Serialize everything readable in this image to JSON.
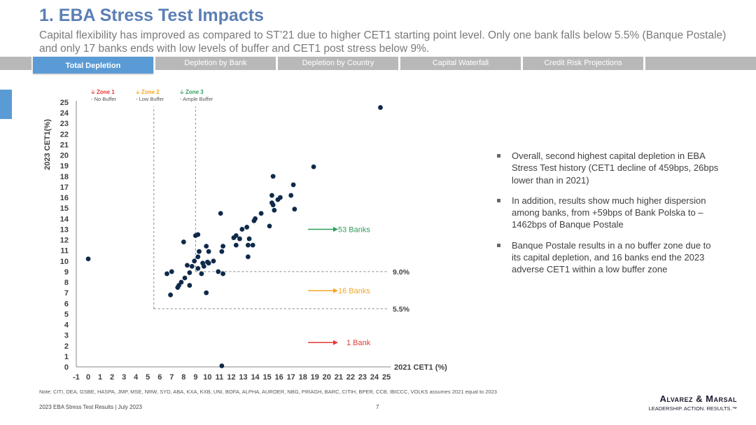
{
  "header": {
    "title": "1. EBA Stress Test Impacts",
    "subtitle": "Capital flexibility has improved as compared to ST’21 due to higher CET1 starting point level. Only one bank falls below 5.5% (Banque Postale) and only 17 banks ends with low levels of buffer and CET1 post stress below 9%."
  },
  "tabs": [
    {
      "label": "Total Depletion",
      "active": true
    },
    {
      "label": "Depletion by Bank",
      "active": false
    },
    {
      "label": "Depletion by Country",
      "active": false
    },
    {
      "label": "Capital Waterfall",
      "active": false
    },
    {
      "label": "Credit Risk Projections",
      "active": false
    }
  ],
  "chart_data": {
    "type": "scatter",
    "xlabel": "2021 CET1 (%)",
    "ylabel": "2023 CET1(%)",
    "xlim": [
      -1,
      25
    ],
    "ylim": [
      0,
      25
    ],
    "xticks": [
      -1,
      0,
      1,
      2,
      3,
      4,
      5,
      6,
      7,
      8,
      9,
      10,
      11,
      12,
      13,
      14,
      15,
      16,
      17,
      18,
      19,
      20,
      21,
      22,
      23,
      24,
      25
    ],
    "yticks": [
      0,
      1,
      2,
      3,
      4,
      5,
      6,
      7,
      8,
      9,
      10,
      11,
      12,
      13,
      14,
      15,
      16,
      17,
      18,
      19,
      20,
      21,
      22,
      23,
      24,
      25
    ],
    "points": [
      [
        0,
        10.2
      ],
      [
        24.5,
        24.5
      ],
      [
        18.9,
        18.9
      ],
      [
        11.2,
        0.1
      ],
      [
        6.6,
        8.8
      ],
      [
        7.0,
        9.0
      ],
      [
        7.8,
        8.0
      ],
      [
        8.1,
        8.4
      ],
      [
        7.6,
        7.7
      ],
      [
        8.3,
        9.6
      ],
      [
        8.7,
        9.5
      ],
      [
        8.9,
        10.0
      ],
      [
        8.5,
        8.9
      ],
      [
        9.2,
        10.4
      ],
      [
        9.3,
        10.9
      ],
      [
        9.6,
        9.8
      ],
      [
        9.9,
        11.4
      ],
      [
        10.1,
        10.9
      ],
      [
        9.5,
        8.8
      ],
      [
        9.2,
        9.3
      ],
      [
        9.7,
        9.5
      ],
      [
        10.1,
        9.8
      ],
      [
        10.5,
        10.0
      ],
      [
        10.0,
        9.9
      ],
      [
        9.9,
        7.0
      ],
      [
        7.5,
        7.5
      ],
      [
        8.5,
        7.7
      ],
      [
        6.9,
        6.8
      ],
      [
        8.0,
        11.8
      ],
      [
        9.0,
        12.4
      ],
      [
        9.2,
        12.5
      ],
      [
        11.1,
        14.5
      ],
      [
        10.9,
        9.0
      ],
      [
        11.3,
        8.8
      ],
      [
        11.2,
        10.9
      ],
      [
        11.3,
        11.4
      ],
      [
        12.2,
        12.2
      ],
      [
        12.4,
        12.4
      ],
      [
        12.7,
        12.1
      ],
      [
        12.4,
        11.5
      ],
      [
        12.9,
        13.0
      ],
      [
        13.3,
        13.2
      ],
      [
        13.4,
        11.5
      ],
      [
        13.5,
        12.1
      ],
      [
        13.8,
        11.5
      ],
      [
        13.9,
        13.8
      ],
      [
        14.0,
        14.0
      ],
      [
        14.5,
        14.5
      ],
      [
        13.4,
        10.4
      ],
      [
        15.2,
        13.3
      ],
      [
        15.4,
        15.5
      ],
      [
        15.5,
        15.3
      ],
      [
        15.6,
        14.8
      ],
      [
        15.4,
        16.2
      ],
      [
        15.9,
        15.8
      ],
      [
        16.1,
        16.0
      ],
      [
        17.0,
        16.2
      ],
      [
        17.2,
        17.2
      ],
      [
        17.3,
        14.9
      ],
      [
        15.5,
        18.0
      ]
    ],
    "zones": [
      {
        "symbol": "🡣",
        "label": "Zone 1",
        "desc": "- No Buffer",
        "color": "#e53935"
      },
      {
        "symbol": "🡣",
        "label": "Zone 2",
        "desc": "- Low Buffer",
        "color": "#f5a623"
      },
      {
        "symbol": "🡣",
        "label": "Zone 3",
        "desc": "- Ample Buffer",
        "color": "#2e9e5b"
      }
    ],
    "thresholds": [
      {
        "label": "9.0%",
        "y": 9.0,
        "x_start": 9
      },
      {
        "label": "5.5%",
        "y": 5.5,
        "x_start": 5.5
      }
    ],
    "annotations": [
      {
        "label": "53 Banks",
        "y": 13.0,
        "color": "#2e9e5b"
      },
      {
        "label": "16 Banks",
        "y": 7.2,
        "color": "#f5a623"
      },
      {
        "label": "1 Bank",
        "y": 2.3,
        "color": "#e53935"
      }
    ],
    "point_color": "#0f2a4a"
  },
  "bullets": [
    "Overall, second highest capital depletion in EBA Stress Test history (CET1 decline of 459bps, 26bps lower than in 2021)",
    "In addition, results show much higher dispersion among banks, from +59bps of Bank Polska to –1462bps of Banque Postale",
    "Banque Postale results in a no buffer zone due to its capital depletion, and 16 banks end the 2023 adverse CET1 within a low buffer zone"
  ],
  "note": "Note: CITI, DEA, GSBE, HASPA, JMP, MSE, NRW, SYD, ABA, KXA, KXB, UNI, BOFA, ALPHA, AUROER, NBG, PIRAGH, BARC, CITIH, BPER, CCB, IBICCC, VOLKS assumes 2021 equal to 2023",
  "footer": {
    "left": "2023 EBA Stress Test Results | July 2023",
    "page": "7"
  },
  "logo": {
    "name": "Alvarez & Marsal",
    "tagline": "LEADERSHIP. ACTION. RESULTS.™"
  }
}
